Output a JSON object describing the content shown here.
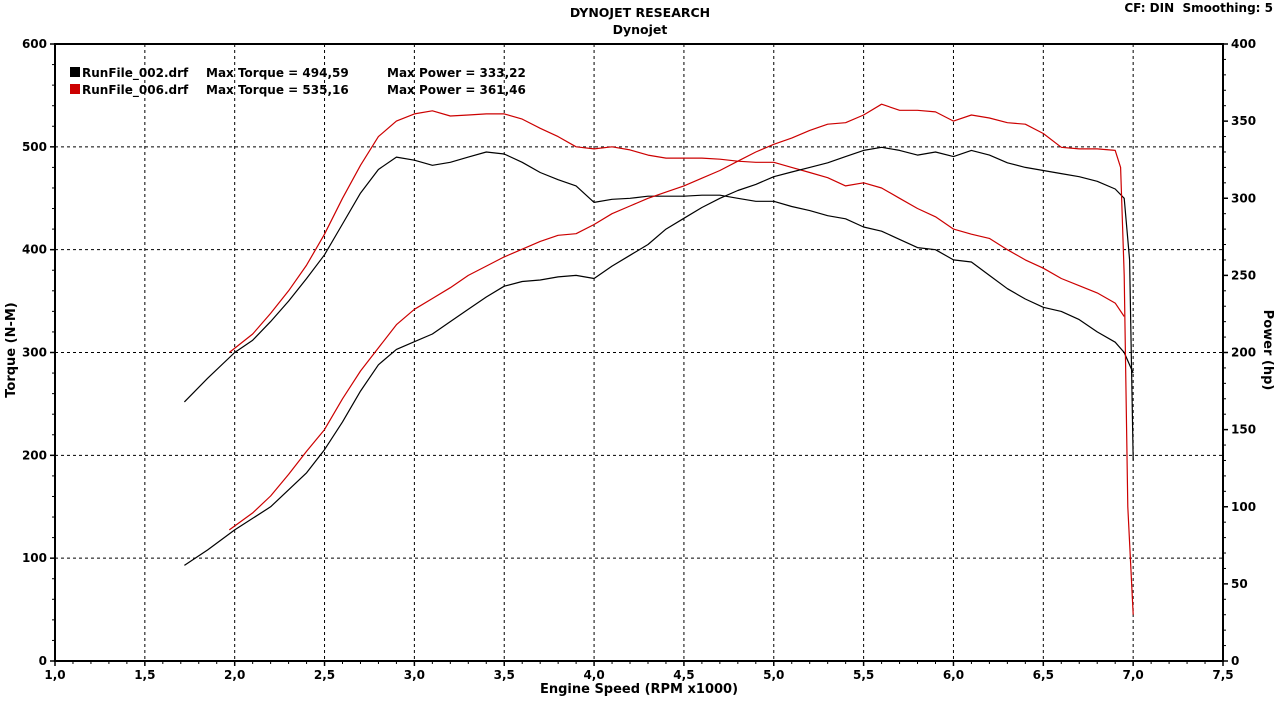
{
  "header": {
    "title": "DYNOJET RESEARCH",
    "subtitle": "Dynojet",
    "corner_info": "CF: DIN  Smoothing: 5"
  },
  "chart_data": {
    "type": "line",
    "xlabel": "Engine Speed (RPM x1000)",
    "ylabel_left": "Torque (N-M)",
    "ylabel_right": "Power (hp)",
    "xlim": [
      1.0,
      7.5
    ],
    "ylim_left": [
      0,
      600
    ],
    "ylim_right": [
      0,
      400
    ],
    "x_ticks": [
      "1,0",
      "1,5",
      "2,0",
      "2,5",
      "3,0",
      "3,5",
      "4,0",
      "4,5",
      "5,0",
      "5,5",
      "6,0",
      "6,5",
      "7,0",
      "7,5"
    ],
    "y_ticks_left": [
      "0",
      "100",
      "200",
      "300",
      "400",
      "500",
      "600"
    ],
    "y_ticks_right": [
      "0",
      "50",
      "100",
      "150",
      "200",
      "250",
      "300",
      "350",
      "400"
    ],
    "grid": true,
    "legend_position": "top-left",
    "legend": [
      {
        "file": "RunFile_002.drf",
        "max_torque_label": "Max Torque = 494,59",
        "max_power_label": "Max Power = 333,22",
        "color": "#000000"
      },
      {
        "file": "RunFile_006.drf",
        "max_torque_label": "Max Torque = 535,16",
        "max_power_label": "Max Power = 361,46",
        "color": "#cc0000"
      }
    ],
    "series": [
      {
        "name": "RunFile_002.drf",
        "kind": "torque",
        "axis": "left",
        "color": "#000000",
        "x": [
          1.72,
          1.85,
          2.0,
          2.1,
          2.2,
          2.3,
          2.4,
          2.5,
          2.6,
          2.7,
          2.8,
          2.9,
          3.0,
          3.1,
          3.2,
          3.3,
          3.4,
          3.5,
          3.6,
          3.7,
          3.8,
          3.9,
          4.0,
          4.1,
          4.2,
          4.3,
          4.4,
          4.5,
          4.6,
          4.7,
          4.8,
          4.9,
          5.0,
          5.1,
          5.2,
          5.3,
          5.4,
          5.5,
          5.6,
          5.7,
          5.8,
          5.9,
          6.0,
          6.1,
          6.2,
          6.3,
          6.4,
          6.5,
          6.6,
          6.7,
          6.8,
          6.9,
          6.95,
          7.0
        ],
        "y": [
          252,
          275,
          300,
          312,
          330,
          350,
          372,
          395,
          425,
          455,
          478,
          490,
          487,
          482,
          485,
          490,
          495,
          493,
          485,
          475,
          468,
          462,
          446,
          449,
          450,
          452,
          452,
          452,
          453,
          453,
          450,
          447,
          447,
          442,
          438,
          433,
          430,
          422,
          418,
          410,
          402,
          400,
          390,
          388,
          375,
          362,
          352,
          344,
          340,
          332,
          320,
          310,
          300,
          280
        ]
      },
      {
        "name": "RunFile_006.drf",
        "kind": "torque",
        "axis": "left",
        "color": "#cc0000",
        "x": [
          1.97,
          2.1,
          2.2,
          2.3,
          2.4,
          2.5,
          2.6,
          2.7,
          2.8,
          2.9,
          3.0,
          3.1,
          3.2,
          3.3,
          3.4,
          3.5,
          3.6,
          3.7,
          3.8,
          3.9,
          4.0,
          4.1,
          4.2,
          4.3,
          4.4,
          4.5,
          4.6,
          4.7,
          4.8,
          4.9,
          5.0,
          5.1,
          5.2,
          5.3,
          5.4,
          5.5,
          5.6,
          5.7,
          5.8,
          5.9,
          6.0,
          6.1,
          6.2,
          6.3,
          6.4,
          6.5,
          6.6,
          6.7,
          6.8,
          6.9,
          6.95
        ],
        "y": [
          300,
          318,
          338,
          360,
          385,
          415,
          450,
          482,
          510,
          525,
          532,
          535,
          530,
          531,
          532,
          532,
          527,
          518,
          510,
          500,
          498,
          500,
          497,
          492,
          489,
          489,
          489,
          488,
          486,
          485,
          485,
          480,
          475,
          470,
          462,
          465,
          460,
          450,
          440,
          432,
          420,
          415,
          411,
          400,
          390,
          382,
          372,
          365,
          358,
          348,
          335
        ]
      },
      {
        "name": "RunFile_002.drf",
        "kind": "power",
        "axis": "right",
        "color": "#000000",
        "x": [
          1.72,
          1.85,
          2.0,
          2.2,
          2.4,
          2.5,
          2.6,
          2.7,
          2.8,
          2.9,
          3.0,
          3.1,
          3.2,
          3.3,
          3.4,
          3.5,
          3.6,
          3.7,
          3.8,
          3.9,
          4.0,
          4.1,
          4.2,
          4.3,
          4.4,
          4.5,
          4.6,
          4.7,
          4.8,
          4.9,
          5.0,
          5.1,
          5.2,
          5.3,
          5.4,
          5.5,
          5.6,
          5.7,
          5.8,
          5.9,
          6.0,
          6.1,
          6.2,
          6.3,
          6.4,
          6.5,
          6.6,
          6.7,
          6.8,
          6.9,
          6.95,
          6.98,
          7.0
        ],
        "y": [
          62,
          72,
          85,
          100,
          122,
          137,
          155,
          175,
          192,
          202,
          207,
          212,
          220,
          228,
          236,
          243,
          246,
          247,
          249,
          250,
          248,
          256,
          263,
          270,
          280,
          287,
          294,
          300,
          305,
          309,
          314,
          317,
          320,
          323,
          327,
          331,
          333,
          331,
          328,
          330,
          327,
          331,
          328,
          323,
          320,
          318,
          316,
          314,
          311,
          306,
          300,
          260,
          130
        ]
      },
      {
        "name": "RunFile_006.drf",
        "kind": "power",
        "axis": "right",
        "color": "#cc0000",
        "x": [
          1.97,
          2.1,
          2.2,
          2.3,
          2.4,
          2.5,
          2.6,
          2.7,
          2.8,
          2.9,
          3.0,
          3.1,
          3.2,
          3.3,
          3.4,
          3.5,
          3.6,
          3.7,
          3.8,
          3.9,
          4.0,
          4.1,
          4.2,
          4.3,
          4.4,
          4.5,
          4.6,
          4.7,
          4.8,
          4.9,
          5.0,
          5.1,
          5.2,
          5.3,
          5.4,
          5.5,
          5.6,
          5.7,
          5.8,
          5.9,
          6.0,
          6.1,
          6.2,
          6.3,
          6.4,
          6.5,
          6.6,
          6.7,
          6.8,
          6.9,
          6.93,
          6.95,
          6.97,
          7.0
        ],
        "y": [
          85,
          96,
          107,
          121,
          136,
          150,
          170,
          188,
          203,
          218,
          228,
          235,
          242,
          250,
          256,
          262,
          267,
          272,
          276,
          277,
          283,
          290,
          295,
          300,
          304,
          308,
          313,
          318,
          324,
          330,
          335,
          339,
          344,
          348,
          349,
          354,
          361,
          357,
          357,
          356,
          350,
          354,
          352,
          349,
          348,
          342,
          333,
          332,
          332,
          331,
          320,
          250,
          100,
          30
        ]
      }
    ]
  }
}
